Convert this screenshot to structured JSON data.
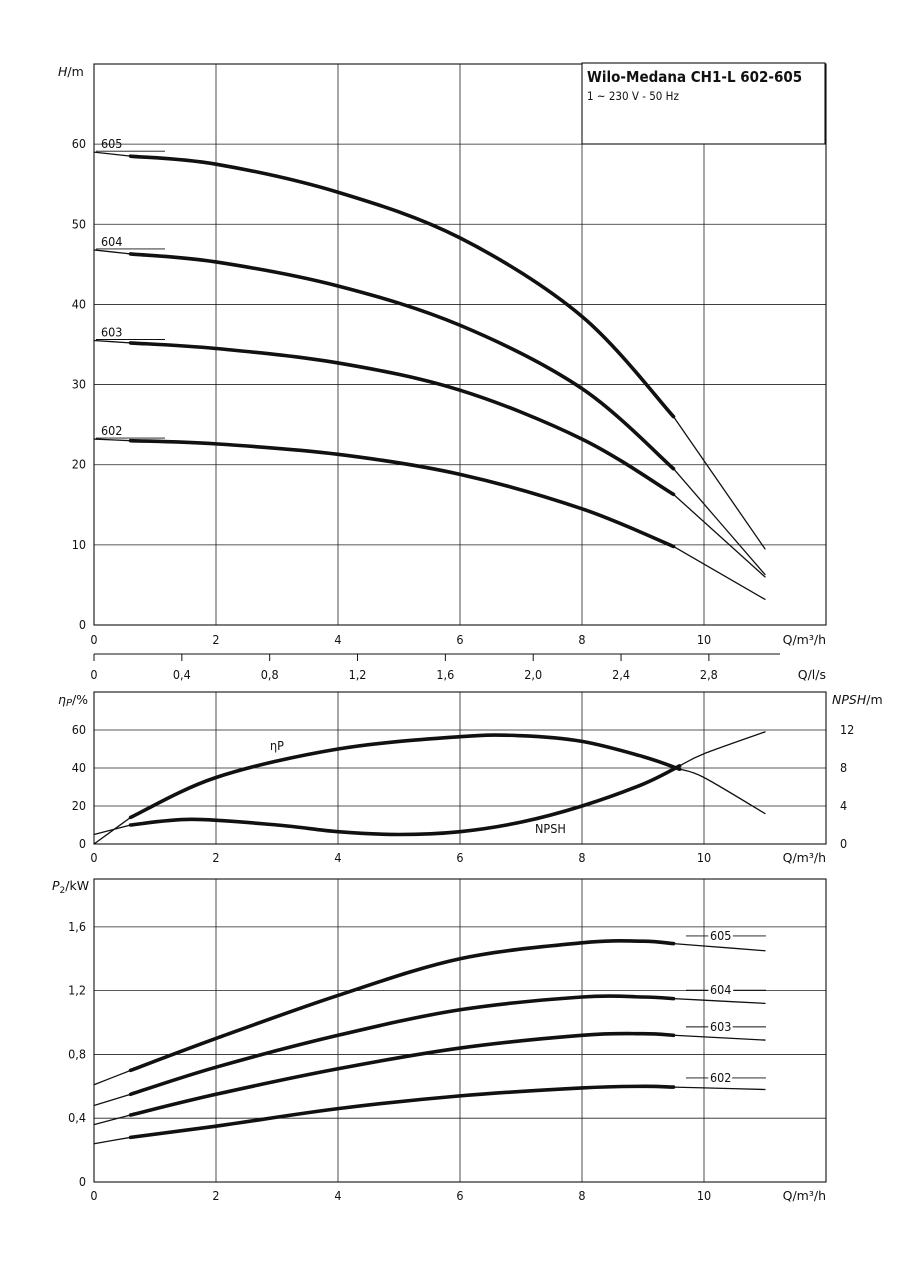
{
  "title": "Wilo-Medana CH1-L 602-605",
  "subtitle": "1 ~ 230 V - 50 Hz",
  "chart_data": [
    {
      "type": "line",
      "name": "head",
      "ylabel": "H/m",
      "xlabel": "Q/m³/h",
      "xlim": [
        0,
        12
      ],
      "ylim": [
        0,
        60
      ],
      "xticks": [
        "0",
        "2",
        "4",
        "6",
        "8",
        "10"
      ],
      "yticks": [
        "0",
        "10",
        "20",
        "30",
        "40",
        "50",
        "60"
      ],
      "secondary_x": {
        "label": "Q/l/s",
        "ticks": [
          "0",
          "0,4",
          "0,8",
          "1,2",
          "1,6",
          "2,0",
          "2,4",
          "2,8"
        ],
        "values": [
          0,
          0.4,
          0.8,
          1.2,
          1.6,
          2.0,
          2.4,
          2.8
        ]
      },
      "op_range": [
        0.6,
        9.5
      ],
      "series": [
        {
          "name": "605",
          "x": [
            0,
            0.6,
            2,
            4,
            6,
            8,
            9.5,
            11
          ],
          "values": [
            59,
            58.5,
            57.5,
            54,
            48.3,
            38.5,
            26,
            9.5
          ]
        },
        {
          "name": "604",
          "x": [
            0,
            0.6,
            2,
            4,
            6,
            8,
            9.5,
            11
          ],
          "values": [
            46.8,
            46.3,
            45.3,
            42.3,
            37.4,
            29.5,
            19.5,
            6.3
          ]
        },
        {
          "name": "603",
          "x": [
            0,
            0.6,
            2,
            4,
            6,
            8,
            9.5,
            11
          ],
          "values": [
            35.5,
            35.2,
            34.5,
            32.7,
            29.3,
            23.2,
            16.3,
            6
          ]
        },
        {
          "name": "602",
          "x": [
            0,
            0.6,
            2,
            4,
            6,
            8,
            9.5,
            11
          ],
          "values": [
            23.2,
            23,
            22.6,
            21.3,
            18.8,
            14.5,
            9.8,
            3.2
          ]
        }
      ]
    },
    {
      "type": "line",
      "name": "efficiency-npsh",
      "ylabel": "ηP/%",
      "ylabel_right": "NPSH/m",
      "xlabel": "Q/m³/h",
      "xlim": [
        0,
        12
      ],
      "ylim": [
        0,
        70
      ],
      "ylim_right": [
        0,
        14
      ],
      "xticks": [
        "0",
        "2",
        "4",
        "6",
        "8",
        "10"
      ],
      "yticks": [
        "0",
        "20",
        "40",
        "60"
      ],
      "yticks_right": [
        "0",
        "4",
        "8",
        "12"
      ],
      "series": [
        {
          "name": "ηP",
          "axis": "left",
          "x": [
            0,
            0.6,
            2,
            4,
            6,
            7,
            8,
            9,
            10,
            11
          ],
          "values": [
            0,
            14,
            35,
            50,
            56.5,
            57,
            54,
            46,
            35,
            16
          ]
        },
        {
          "name": "NPSH",
          "axis": "right",
          "x": [
            0,
            0.6,
            1.6,
            3,
            4,
            5,
            6,
            7,
            8,
            9,
            10,
            11
          ],
          "values": [
            1,
            2,
            2.6,
            2,
            1.3,
            1,
            1.3,
            2.3,
            4,
            6.3,
            9.5,
            11.8
          ]
        }
      ]
    },
    {
      "type": "line",
      "name": "power",
      "ylabel": "P2/kW",
      "xlabel": "Q/m³/h",
      "xlim": [
        0,
        12
      ],
      "ylim": [
        0,
        1.9
      ],
      "xticks": [
        "0",
        "2",
        "4",
        "6",
        "8",
        "10"
      ],
      "yticks": [
        "0",
        "0,4",
        "0,8",
        "1,2",
        "1,6"
      ],
      "series": [
        {
          "name": "605",
          "x": [
            0,
            0.6,
            2,
            4,
            6,
            8,
            9,
            10,
            11
          ],
          "values": [
            0.61,
            0.7,
            0.9,
            1.17,
            1.4,
            1.5,
            1.51,
            1.48,
            1.45
          ]
        },
        {
          "name": "604",
          "x": [
            0,
            0.6,
            2,
            4,
            6,
            8,
            9,
            10,
            11
          ],
          "values": [
            0.48,
            0.55,
            0.72,
            0.92,
            1.08,
            1.16,
            1.16,
            1.14,
            1.12
          ]
        },
        {
          "name": "603",
          "x": [
            0,
            0.6,
            2,
            4,
            6,
            8,
            9,
            10,
            11
          ],
          "values": [
            0.36,
            0.42,
            0.55,
            0.71,
            0.84,
            0.92,
            0.93,
            0.91,
            0.89
          ]
        },
        {
          "name": "602",
          "x": [
            0,
            0.6,
            2,
            4,
            6,
            8,
            9,
            10,
            11
          ],
          "values": [
            0.24,
            0.28,
            0.35,
            0.46,
            0.54,
            0.59,
            0.6,
            0.59,
            0.58
          ]
        }
      ]
    }
  ]
}
